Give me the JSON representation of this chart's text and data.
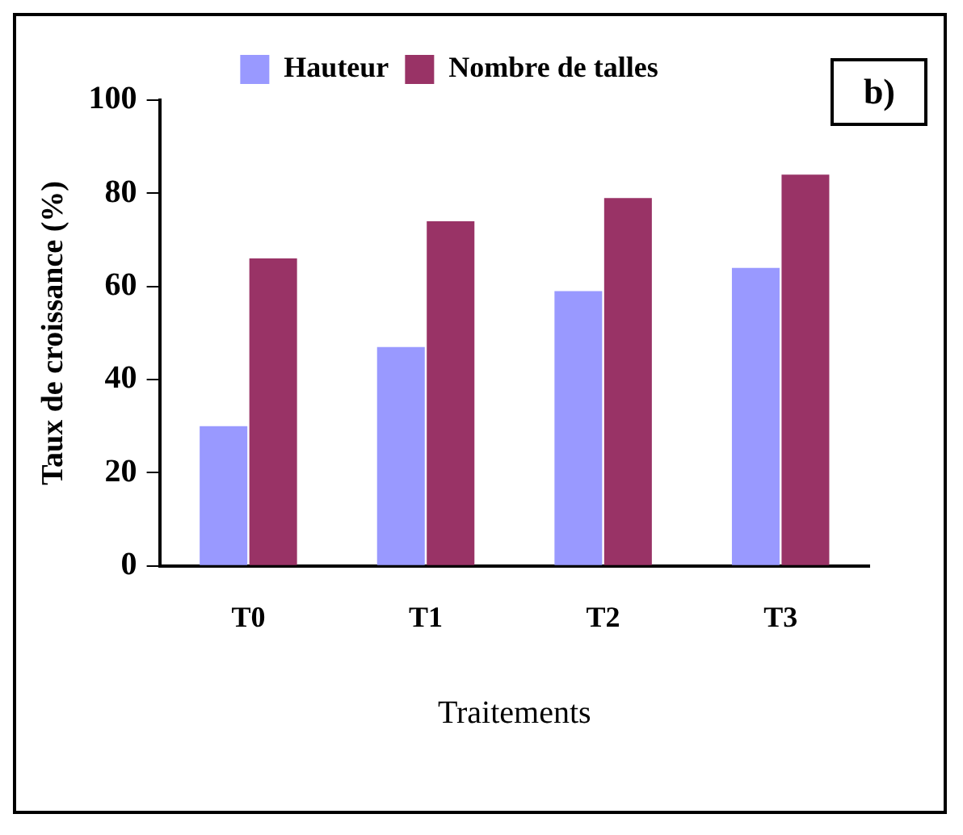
{
  "chart_data": {
    "type": "bar",
    "xlabel": "Traitements",
    "ylabel": "Taux de croissance (%)",
    "categories": [
      "T0",
      "T1",
      "T2",
      "T3"
    ],
    "series": [
      {
        "name": "Hauteur",
        "color": "#9999ff",
        "values": [
          30,
          47,
          59,
          64
        ]
      },
      {
        "name": "Nombre de talles",
        "color": "#993366",
        "values": [
          66,
          74,
          79,
          84
        ]
      }
    ],
    "ylim": [
      0,
      100
    ],
    "yticks": [
      0,
      20,
      40,
      60,
      80,
      100
    ],
    "grid": false,
    "legend": "top",
    "annotations": [
      "b)"
    ]
  }
}
